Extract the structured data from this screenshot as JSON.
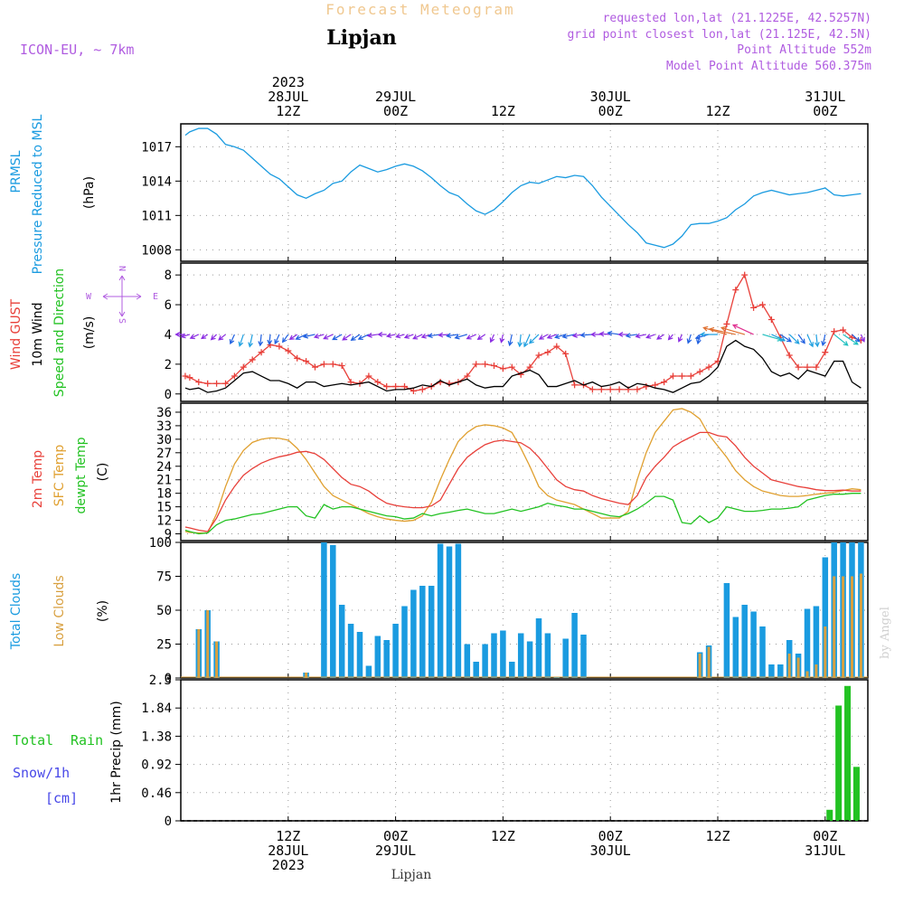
{
  "header": {
    "title": "Forecast Meteogram",
    "location": "Lipjan",
    "model": "ICON-EU, ~ 7km",
    "requested": "requested lon,lat (21.1225E, 42.5257N)",
    "grid_point": "grid point closest lon,lat (21.125E, 42.5N)",
    "point_altitude": "Point Altitude 552m",
    "model_altitude": "Model Point Altitude 560.375m",
    "footer_location": "Lipjan",
    "watermark": "by Angel"
  },
  "colors": {
    "pressure": "#1a9be0",
    "gust": "#e8403a",
    "wind": "#000000",
    "temp2m": "#e8403a",
    "sfc_temp": "#e0a030",
    "dewpt": "#22c222",
    "total_clouds": "#1a9be0",
    "low_clouds": "#d8a040",
    "rain": "#22c222",
    "snow": "#4848e8",
    "header_purple": "#b05ce0",
    "header_orange": "#f0c890"
  },
  "time_axis": {
    "top_labels": [
      {
        "t": 12,
        "lines": [
          "2023",
          "28JUL",
          "12Z"
        ]
      },
      {
        "t": 24,
        "lines": [
          "29JUL",
          "00Z"
        ]
      },
      {
        "t": 36,
        "lines": [
          "12Z"
        ]
      },
      {
        "t": 48,
        "lines": [
          "30JUL",
          "00Z"
        ]
      },
      {
        "t": 60,
        "lines": [
          "12Z"
        ]
      },
      {
        "t": 72,
        "lines": [
          "31JUL",
          "00Z"
        ]
      }
    ],
    "bottom_labels": [
      {
        "t": 12,
        "lines": [
          "12Z",
          "28JUL",
          "2023"
        ]
      },
      {
        "t": 24,
        "lines": [
          "00Z",
          "29JUL"
        ]
      },
      {
        "t": 36,
        "lines": [
          "12Z"
        ]
      },
      {
        "t": 48,
        "lines": [
          "00Z",
          "30JUL"
        ]
      },
      {
        "t": 60,
        "lines": [
          "12Z"
        ]
      },
      {
        "t": 72,
        "lines": [
          "00Z",
          "31JUL"
        ]
      }
    ]
  },
  "chart_data": [
    {
      "type": "line",
      "name": "pressure",
      "labels": [
        "PRMSL",
        "Pressure Reduced to MSL",
        "(hPa)"
      ],
      "y_ticks": [
        1008,
        1011,
        1014,
        1017
      ],
      "ylim": [
        1007,
        1019
      ],
      "x": [
        0.5,
        1,
        2,
        3,
        4,
        5,
        6,
        7,
        8,
        9,
        10,
        11,
        12,
        13,
        14,
        15,
        16,
        17,
        18,
        19,
        20,
        21,
        22,
        23,
        24,
        25,
        26,
        27,
        28,
        29,
        30,
        31,
        32,
        33,
        34,
        35,
        36,
        37,
        38,
        39,
        40,
        41,
        42,
        43,
        44,
        45,
        46,
        47,
        48,
        49,
        50,
        51,
        52,
        53,
        54,
        55,
        56,
        57,
        58,
        59,
        60,
        61,
        62,
        63,
        64,
        65,
        66,
        67,
        68,
        69,
        70,
        71,
        72,
        73,
        74,
        75,
        76
      ],
      "values": [
        1018,
        1018.3,
        1018.6,
        1018.6,
        1018.1,
        1017.2,
        1017.0,
        1016.7,
        1016.0,
        1015.3,
        1014.6,
        1014.2,
        1013.5,
        1012.8,
        1012.5,
        1012.9,
        1013.2,
        1013.8,
        1014.0,
        1014.8,
        1015.4,
        1015.1,
        1014.8,
        1015.0,
        1015.3,
        1015.5,
        1015.3,
        1014.9,
        1014.3,
        1013.6,
        1013.0,
        1012.7,
        1012.0,
        1011.4,
        1011.1,
        1011.5,
        1012.2,
        1013.0,
        1013.6,
        1013.9,
        1013.8,
        1014.1,
        1014.4,
        1014.3,
        1014.5,
        1014.4,
        1013.6,
        1012.6,
        1011.8,
        1011.0,
        1010.2,
        1009.5,
        1008.6,
        1008.4,
        1008.2,
        1008.5,
        1009.2,
        1010.2,
        1010.3,
        1010.3,
        1010.5,
        1010.8,
        1011.5,
        1012.0,
        1012.7,
        1013.0,
        1013.2,
        1013.0,
        1012.8,
        1012.9,
        1013.0,
        1013.2,
        1013.4,
        1012.8,
        1012.7,
        1012.8,
        1012.9
      ]
    },
    {
      "type": "line",
      "name": "wind",
      "labels": [
        "Wind GUST",
        "10m Wind",
        "Speed and Direction",
        "(m/s)"
      ],
      "compass": {
        "n": "N",
        "s": "S",
        "e": "E",
        "w": "W"
      },
      "y_ticks": [
        0,
        2,
        4,
        6,
        8
      ],
      "ylim": [
        -0.5,
        8.8
      ],
      "x": [
        0.5,
        1,
        2,
        3,
        4,
        5,
        6,
        7,
        8,
        9,
        10,
        11,
        12,
        13,
        14,
        15,
        16,
        17,
        18,
        19,
        20,
        21,
        22,
        23,
        24,
        25,
        26,
        27,
        28,
        29,
        30,
        31,
        32,
        33,
        34,
        35,
        36,
        37,
        38,
        39,
        40,
        41,
        42,
        43,
        44,
        45,
        46,
        47,
        48,
        49,
        50,
        51,
        52,
        53,
        54,
        55,
        56,
        57,
        58,
        59,
        60,
        61,
        62,
        63,
        64,
        65,
        66,
        67,
        68,
        69,
        70,
        71,
        72,
        73,
        74,
        75,
        76
      ],
      "gust": [
        1.2,
        1.1,
        0.8,
        0.7,
        0.7,
        0.7,
        1.2,
        1.8,
        2.3,
        2.8,
        3.3,
        3.2,
        2.9,
        2.4,
        2.2,
        1.8,
        2.0,
        2.0,
        1.9,
        0.8,
        0.7,
        1.2,
        0.8,
        0.5,
        0.5,
        0.5,
        0.2,
        0.3,
        0.5,
        0.8,
        0.7,
        0.8,
        1.2,
        2.0,
        2.0,
        1.9,
        1.7,
        1.8,
        1.3,
        1.8,
        2.6,
        2.8,
        3.2,
        2.7,
        0.6,
        0.6,
        0.3,
        0.3,
        0.3,
        0.3,
        0.3,
        0.3,
        0.5,
        0.6,
        0.8,
        1.2,
        1.2,
        1.2,
        1.5,
        1.8,
        2.2,
        4.7,
        7.0,
        8.0,
        5.8,
        6.0,
        5.0,
        3.8,
        2.6,
        1.8,
        1.8,
        1.8,
        2.8,
        4.2,
        4.3,
        3.8,
        3.6
      ],
      "wind": [
        0.4,
        0.3,
        0.4,
        0.1,
        0.2,
        0.4,
        0.9,
        1.4,
        1.5,
        1.2,
        0.9,
        0.9,
        0.7,
        0.4,
        0.8,
        0.8,
        0.5,
        0.6,
        0.7,
        0.6,
        0.7,
        0.8,
        0.5,
        0.2,
        0.3,
        0.3,
        0.4,
        0.6,
        0.5,
        0.9,
        0.6,
        0.8,
        1.0,
        0.6,
        0.4,
        0.5,
        0.5,
        1.2,
        1.4,
        1.6,
        1.3,
        0.5,
        0.5,
        0.7,
        0.9,
        0.6,
        0.8,
        0.5,
        0.6,
        0.8,
        0.4,
        0.7,
        0.6,
        0.4,
        0.3,
        0.1,
        0.4,
        0.7,
        0.8,
        1.2,
        1.8,
        3.2,
        3.6,
        3.2,
        3.0,
        2.4,
        1.5,
        1.2,
        1.4,
        1.0,
        1.6,
        1.4,
        1.2,
        2.2,
        2.2,
        0.8,
        0.4
      ],
      "dir_deg": [
        270,
        250,
        240,
        230,
        220,
        225,
        200,
        195,
        190,
        185,
        185,
        200,
        210,
        230,
        240,
        255,
        250,
        240,
        235,
        230,
        230,
        240,
        260,
        270,
        255,
        250,
        245,
        240,
        250,
        260,
        265,
        260,
        250,
        240,
        230,
        200,
        190,
        190,
        185,
        200,
        220,
        235,
        245,
        250,
        255,
        260,
        265,
        270,
        275,
        280,
        270,
        260,
        255,
        245,
        230,
        215,
        200,
        195,
        190,
        250,
        270,
        290,
        285,
        290,
        300,
        110,
        120,
        130,
        140,
        150,
        160,
        175,
        190,
        135,
        130,
        140,
        160
      ]
    },
    {
      "type": "line",
      "name": "temperature",
      "labels": [
        "2m Temp",
        "SFC Temp",
        "dewpt Temp",
        "(C)"
      ],
      "y_ticks": [
        9,
        12,
        15,
        18,
        21,
        24,
        27,
        30,
        33,
        36
      ],
      "ylim": [
        7.5,
        38
      ],
      "x": [
        0.5,
        1,
        2,
        3,
        4,
        5,
        6,
        7,
        8,
        9,
        10,
        11,
        12,
        13,
        14,
        15,
        16,
        17,
        18,
        19,
        20,
        21,
        22,
        23,
        24,
        25,
        26,
        27,
        28,
        29,
        30,
        31,
        32,
        33,
        34,
        35,
        36,
        37,
        38,
        39,
        40,
        41,
        42,
        43,
        44,
        45,
        46,
        47,
        48,
        49,
        50,
        51,
        52,
        53,
        54,
        55,
        56,
        57,
        58,
        59,
        60,
        61,
        62,
        63,
        64,
        65,
        66,
        67,
        68,
        69,
        70,
        71,
        72,
        73,
        74,
        75,
        76
      ],
      "t2m": [
        10.5,
        10.3,
        9.8,
        9.5,
        12.5,
        16.5,
        19.5,
        22,
        23.5,
        24.7,
        25.5,
        26.1,
        26.5,
        27.1,
        27.3,
        26.8,
        25.5,
        23.5,
        21.5,
        20,
        19.5,
        18.5,
        17,
        15.8,
        15.3,
        15,
        14.8,
        14.8,
        15.2,
        16.5,
        20,
        23.5,
        26,
        27.5,
        28.8,
        29.5,
        29.8,
        29.5,
        29.2,
        28,
        26,
        23.5,
        21,
        19.5,
        18.8,
        18.5,
        17.5,
        16.8,
        16.3,
        15.8,
        15.5,
        17.5,
        21.5,
        24,
        26,
        28.3,
        29.5,
        30.5,
        31.5,
        31.5,
        30.8,
        30.5,
        28.5,
        26,
        24,
        22.5,
        21,
        20.5,
        20,
        19.5,
        19.2,
        18.8,
        18.6,
        18.6,
        18.7,
        18.5,
        18.5
      ],
      "sfc": [
        9.5,
        9.3,
        9.2,
        9.2,
        13.5,
        19.5,
        24.5,
        27.5,
        29.3,
        30,
        30.3,
        30.2,
        29.8,
        28,
        25.5,
        22.5,
        19.5,
        17.5,
        16.5,
        15.5,
        14.5,
        13.5,
        12.8,
        12.3,
        12,
        11.8,
        12,
        13,
        16,
        21,
        25.5,
        29.5,
        31.5,
        32.8,
        33.2,
        33,
        32.5,
        31.5,
        28,
        24,
        19.5,
        17.5,
        16.5,
        16,
        15.5,
        14.5,
        13.5,
        12.5,
        12.5,
        12.5,
        14,
        21,
        27,
        31.5,
        34,
        36.5,
        36.8,
        36,
        34.5,
        31,
        28.5,
        26,
        23,
        21,
        19.5,
        18.5,
        18,
        17.5,
        17.3,
        17.3,
        17.5,
        17.8,
        18,
        18.2,
        18.6,
        19,
        18.8
      ],
      "dewpt": [
        9.8,
        9.5,
        9,
        9.2,
        11,
        12,
        12.3,
        12.8,
        13.3,
        13.5,
        14,
        14.5,
        15,
        15,
        13,
        12.5,
        15.5,
        14.5,
        15,
        15,
        14.5,
        14,
        13.5,
        13,
        12.8,
        12.3,
        12.5,
        13.5,
        13,
        13.5,
        13.8,
        14.2,
        14.5,
        14,
        13.5,
        13.5,
        14,
        14.5,
        14,
        14.5,
        15,
        15.8,
        15.3,
        15,
        14.5,
        14.5,
        14,
        13.5,
        13,
        12.8,
        13.5,
        14.5,
        15.8,
        17.3,
        17.3,
        16.5,
        11.5,
        11.2,
        13,
        11.5,
        12.5,
        15,
        14.5,
        14,
        14,
        14.2,
        14.5,
        14.5,
        14.7,
        15,
        16.5,
        17,
        17.5,
        17.8,
        17.8,
        18,
        18
      ]
    },
    {
      "type": "bar",
      "name": "clouds",
      "labels": [
        "Total Clouds",
        "Low Clouds",
        "(%)"
      ],
      "y_ticks": [
        0,
        25,
        50,
        75,
        100
      ],
      "ylim": [
        0,
        100
      ],
      "x": [
        0.5,
        1,
        2,
        3,
        4,
        5,
        6,
        7,
        8,
        9,
        10,
        11,
        12,
        13,
        14,
        15,
        16,
        17,
        18,
        19,
        20,
        21,
        22,
        23,
        24,
        25,
        26,
        27,
        28,
        29,
        30,
        31,
        32,
        33,
        34,
        35,
        36,
        37,
        38,
        39,
        40,
        41,
        42,
        43,
        44,
        45,
        46,
        47,
        48,
        49,
        50,
        51,
        52,
        53,
        54,
        55,
        56,
        57,
        58,
        59,
        60,
        61,
        62,
        63,
        64,
        65,
        66,
        67,
        68,
        69,
        70,
        71,
        72,
        73,
        74,
        75,
        76
      ],
      "total": [
        0,
        0,
        36,
        50,
        27,
        0,
        0,
        0,
        0,
        0,
        0,
        0,
        0,
        0,
        4,
        0,
        100,
        98,
        54,
        40,
        34,
        9,
        31,
        28,
        40,
        53,
        65,
        68,
        68,
        99,
        97,
        99,
        25,
        12,
        25,
        33,
        35,
        12,
        33,
        27,
        44,
        33,
        1,
        29,
        48,
        32,
        0,
        0,
        0,
        0,
        0,
        0,
        0,
        0,
        0,
        0,
        0,
        0,
        19,
        24,
        0,
        70,
        45,
        54,
        49,
        38,
        10,
        10,
        28,
        18,
        51,
        53,
        89,
        100,
        100,
        100,
        100
      ],
      "low": [
        0,
        0,
        36,
        50,
        27,
        0,
        0,
        0,
        0,
        0,
        0,
        0,
        0,
        0,
        4,
        0,
        0,
        0,
        0,
        0,
        0,
        0,
        0,
        0,
        0,
        0,
        0,
        0,
        0,
        0,
        0,
        0,
        0,
        0,
        0,
        0,
        0,
        0,
        0,
        0,
        0,
        0,
        0,
        0,
        0,
        0,
        0,
        0,
        0,
        0,
        0,
        0,
        0,
        0,
        0,
        0,
        0,
        0,
        18,
        23,
        0,
        0,
        0,
        0,
        0,
        0,
        0,
        0,
        18,
        15,
        5,
        10,
        38,
        75,
        75,
        75,
        77
      ]
    },
    {
      "type": "bar",
      "name": "precip",
      "labels": [
        "Total",
        "Rain",
        "Snow/1h",
        "[cm]",
        "1hr Precip (mm)"
      ],
      "y_ticks": [
        0,
        0.46,
        0.92,
        1.38,
        1.84,
        2.3
      ],
      "ylim": [
        0,
        2.3
      ],
      "x": [
        72.5,
        73.5,
        74.5,
        75.5
      ],
      "values": [
        0.18,
        1.88,
        2.2,
        0.88
      ]
    }
  ]
}
